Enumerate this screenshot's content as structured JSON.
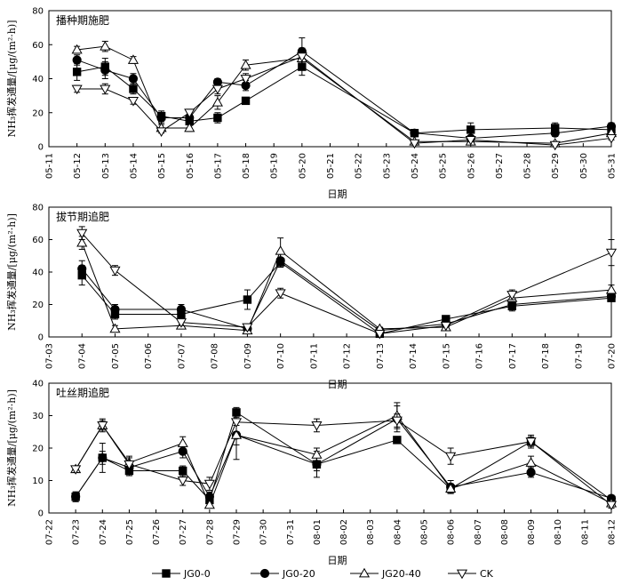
{
  "chart_data": [
    {
      "type": "line",
      "title": "播种期施肥",
      "xlabel": "日期",
      "ylabel": "NH₃挥发通量/[μg/(m²·h)]",
      "ylim": [
        0,
        80
      ],
      "yticks": [
        0,
        20,
        40,
        60,
        80
      ],
      "categories": [
        "05-11",
        "05-12",
        "05-13",
        "05-14",
        "05-15",
        "05-16",
        "05-17",
        "05-18",
        "05-19",
        "05-20",
        "05-21",
        "05-22",
        "05-23",
        "05-24",
        "05-25",
        "05-26",
        "05-27",
        "05-28",
        "05-29",
        "05-30",
        "05-31"
      ],
      "series": [
        {
          "name": "JG0-0",
          "x": [
            "05-12",
            "05-13",
            "05-14",
            "05-15",
            "05-16",
            "05-17",
            "05-18",
            "05-20",
            "05-24",
            "05-26",
            "05-29",
            "05-31"
          ],
          "values": [
            44,
            47,
            34,
            18,
            15,
            17,
            27,
            47,
            8,
            10,
            11,
            10
          ],
          "errors": [
            5,
            5,
            3,
            3,
            4,
            3,
            2,
            5,
            2,
            4,
            3,
            2
          ]
        },
        {
          "name": "JG0-20",
          "x": [
            "05-12",
            "05-13",
            "05-14",
            "05-15",
            "05-16",
            "05-17",
            "05-18",
            "05-20",
            "05-24",
            "05-26",
            "05-29",
            "05-31"
          ],
          "values": [
            51,
            45,
            40,
            17,
            17,
            38,
            36,
            56,
            8,
            5,
            8,
            12
          ],
          "errors": [
            3,
            5,
            3,
            3,
            4,
            2,
            3,
            8,
            2,
            1,
            2,
            2
          ]
        },
        {
          "name": "JG20-40",
          "x": [
            "05-12",
            "05-13",
            "05-14",
            "05-15",
            "05-16",
            "05-17",
            "05-18",
            "05-20",
            "05-24",
            "05-26",
            "05-29",
            "05-31"
          ],
          "values": [
            57,
            59,
            51,
            11,
            11,
            26,
            48,
            52,
            3,
            3,
            2,
            8
          ],
          "errors": [
            2,
            3,
            2,
            2,
            2,
            4,
            3,
            5,
            1,
            1,
            1,
            1
          ]
        },
        {
          "name": "CK",
          "x": [
            "05-12",
            "05-13",
            "05-14",
            "05-15",
            "05-16",
            "05-17",
            "05-18",
            "05-20",
            "05-24",
            "05-26",
            "05-29",
            "05-31"
          ],
          "values": [
            34,
            34,
            27,
            9,
            20,
            34,
            40,
            53,
            2,
            4,
            1,
            5
          ],
          "errors": [
            2,
            3,
            2,
            1,
            2,
            3,
            3,
            5,
            1,
            1,
            1,
            1
          ]
        }
      ]
    },
    {
      "type": "line",
      "title": "拔节期追肥",
      "xlabel": "日期",
      "ylabel": "NH₃挥发通量/[μg/(m²·h)]",
      "ylim": [
        0,
        80
      ],
      "yticks": [
        0,
        20,
        40,
        60,
        80
      ],
      "categories": [
        "07-03",
        "07-04",
        "07-05",
        "07-06",
        "07-07",
        "07-08",
        "07-09",
        "07-10",
        "07-11",
        "07-12",
        "07-13",
        "07-14",
        "07-15",
        "07-16",
        "07-17",
        "07-18",
        "07-19",
        "07-20"
      ],
      "series": [
        {
          "name": "JG0-0",
          "x": [
            "07-04",
            "07-05",
            "07-07",
            "07-09",
            "07-10",
            "07-13",
            "07-15",
            "07-17",
            "07-20"
          ],
          "values": [
            38,
            14,
            14,
            23,
            46,
            2,
            11,
            19,
            24
          ],
          "errors": [
            6,
            3,
            2,
            6,
            3,
            1,
            1,
            3,
            2
          ]
        },
        {
          "name": "JG0-20",
          "x": [
            "07-04",
            "07-05",
            "07-07",
            "07-09",
            "07-10",
            "07-13",
            "07-15",
            "07-17",
            "07-20"
          ],
          "values": [
            42,
            17,
            17,
            5,
            47,
            4,
            8,
            20,
            25
          ],
          "errors": [
            5,
            3,
            3,
            2,
            4,
            1,
            1,
            2,
            2
          ]
        },
        {
          "name": "JG20-40",
          "x": [
            "07-04",
            "07-05",
            "07-07",
            "07-09",
            "07-10",
            "07-13",
            "07-15",
            "07-17",
            "07-20"
          ],
          "values": [
            58,
            5,
            7,
            4,
            53,
            5,
            6,
            24,
            29
          ],
          "errors": [
            4,
            2,
            2,
            1,
            8,
            1,
            1,
            3,
            3
          ]
        },
        {
          "name": "CK",
          "x": [
            "07-04",
            "07-05",
            "07-07",
            "07-09",
            "07-10",
            "07-13",
            "07-15",
            "07-17",
            "07-20"
          ],
          "values": [
            64,
            41,
            9,
            6,
            27,
            2,
            7,
            26,
            52
          ],
          "errors": [
            4,
            3,
            2,
            2,
            3,
            1,
            1,
            3,
            8
          ]
        }
      ]
    },
    {
      "type": "line",
      "title": "吐丝期追肥",
      "xlabel": "日期",
      "ylabel": "NH₃挥发通量/[μg/(m²·h)]",
      "ylim": [
        0,
        40
      ],
      "yticks": [
        0,
        10,
        20,
        30,
        40
      ],
      "categories": [
        "07-22",
        "07-23",
        "07-24",
        "07-25",
        "07-26",
        "07-27",
        "07-28",
        "07-29",
        "07-30",
        "07-31",
        "08-01",
        "08-02",
        "08-03",
        "08-04",
        "08-05",
        "08-06",
        "08-07",
        "08-08",
        "08-09",
        "08-10",
        "08-11",
        "08-12"
      ],
      "series": [
        {
          "name": "JG0-0",
          "x": [
            "07-23",
            "07-24",
            "07-25",
            "07-27",
            "07-28",
            "07-29",
            "08-01",
            "08-04",
            "08-06",
            "08-09",
            "08-12"
          ],
          "values": [
            5,
            17,
            13,
            13,
            4,
            31,
            15,
            22.5,
            7.5,
            22,
            4
          ],
          "errors": [
            1.5,
            2,
            1.5,
            1.5,
            1,
            1.5,
            2,
            1,
            1,
            1.5,
            1
          ]
        },
        {
          "name": "JG0-20",
          "x": [
            "07-23",
            "07-24",
            "07-25",
            "07-27",
            "07-28",
            "07-29",
            "08-01",
            "08-04",
            "08-06",
            "08-09",
            "08-12"
          ],
          "values": [
            5,
            17,
            14,
            19,
            5,
            24,
            15,
            29,
            8,
            12.5,
            4.5
          ],
          "errors": [
            1.5,
            4.5,
            2,
            2,
            1.5,
            7.5,
            4,
            4,
            2,
            1.5,
            1
          ]
        },
        {
          "name": "JG20-40",
          "x": [
            "07-23",
            "07-24",
            "07-25",
            "07-27",
            "07-28",
            "07-29",
            "08-01",
            "08-04",
            "08-06",
            "08-09",
            "08-12"
          ],
          "values": [
            13.5,
            27,
            15.5,
            21.5,
            2.5,
            24,
            18,
            30,
            7.5,
            15.5,
            3
          ],
          "errors": [
            1,
            1.5,
            2,
            2,
            1,
            3,
            2,
            4,
            1.5,
            2,
            1
          ]
        },
        {
          "name": "CK",
          "x": [
            "07-23",
            "07-24",
            "07-25",
            "07-27",
            "07-28",
            "07-29",
            "08-01",
            "08-04",
            "08-06",
            "08-09",
            "08-12"
          ],
          "values": [
            13.5,
            27,
            15,
            10,
            9,
            28,
            27,
            28.5,
            17.5,
            22,
            2.5
          ],
          "errors": [
            1,
            2,
            2,
            1.5,
            2,
            3,
            2,
            2,
            2.5,
            2,
            1
          ]
        }
      ]
    }
  ],
  "legend": [
    {
      "name": "JG0-0",
      "marker": "filled-square"
    },
    {
      "name": "JG0-20",
      "marker": "filled-circle"
    },
    {
      "name": "JG20-40",
      "marker": "open-triangle-up"
    },
    {
      "name": "CK",
      "marker": "open-triangle-down"
    }
  ]
}
